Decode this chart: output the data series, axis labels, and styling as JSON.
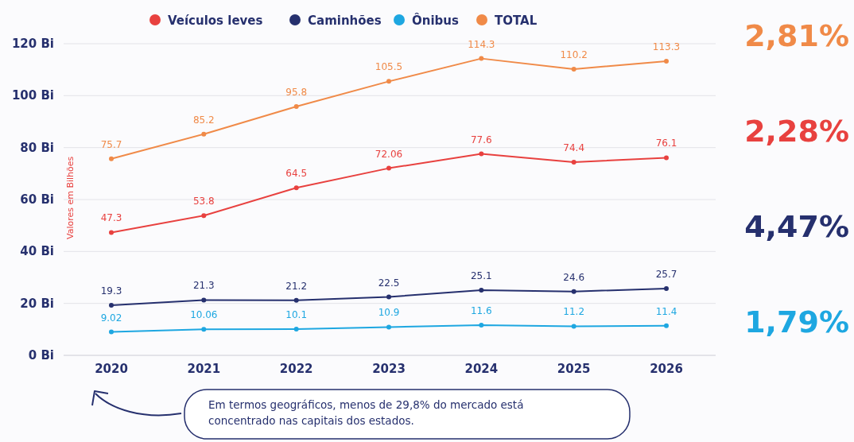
{
  "chart_data": {
    "type": "line",
    "categories": [
      "2020",
      "2021",
      "2022",
      "2023",
      "2024",
      "2025",
      "2026"
    ],
    "series": [
      {
        "name": "Veículos leves",
        "color": "#e8413f",
        "values": [
          47.3,
          53.8,
          64.5,
          72.06,
          77.6,
          74.4,
          76.1
        ]
      },
      {
        "name": "Caminhões",
        "color": "#26306e",
        "values": [
          19.3,
          21.3,
          21.2,
          22.5,
          25.1,
          24.6,
          25.7
        ]
      },
      {
        "name": "Ônibus",
        "color": "#1ea7e1",
        "values": [
          9.02,
          10.06,
          10.1,
          10.9,
          11.6,
          11.2,
          11.4
        ]
      },
      {
        "name": "TOTAL",
        "color": "#f08a48",
        "values": [
          75.7,
          85.2,
          95.8,
          105.5,
          114.3,
          110.2,
          113.3
        ]
      }
    ],
    "ylabel": "Valores em Bilhões",
    "ylim": [
      0,
      120
    ],
    "yticks": [
      {
        "value": 0,
        "label": "0 Bi"
      },
      {
        "value": 20,
        "label": "20 Bi"
      },
      {
        "value": 40,
        "label": "40 Bi"
      },
      {
        "value": 60,
        "label": "60 Bi"
      },
      {
        "value": 80,
        "label": "80 Bi"
      },
      {
        "value": 100,
        "label": "100 Bi"
      },
      {
        "value": 120,
        "label": "120 Bi"
      }
    ],
    "grid": "y",
    "legend": "top",
    "marker": "circle",
    "line_style": "solid",
    "data_labels": true,
    "annotations": [
      "2,81%",
      "2,28%",
      "4,47%",
      "1,79%",
      "Em termos geográficos, menos de 29,8% do mercado está concentrado nas capitais dos estados."
    ]
  }
}
